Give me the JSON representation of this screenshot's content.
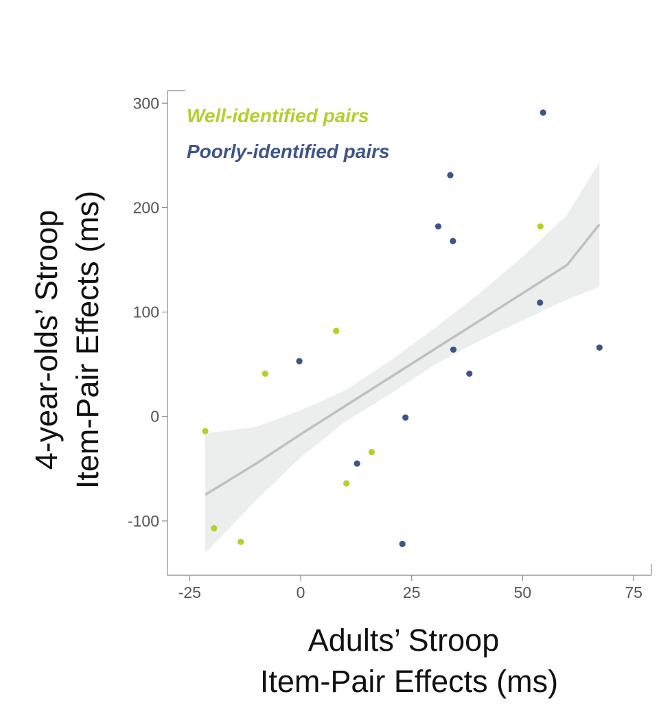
{
  "chart_data": {
    "type": "scatter",
    "xlabel_lines": [
      "Adults’ Stroop",
      "Item-Pair Effects (ms)"
    ],
    "ylabel_lines": [
      "4-year-olds’ Stroop",
      "Item-Pair Effects (ms)"
    ],
    "xlim": [
      -30,
      79
    ],
    "ylim": [
      -152,
      312
    ],
    "xticks": [
      -25,
      0,
      25,
      50,
      75
    ],
    "yticks": [
      -100,
      0,
      100,
      200,
      300
    ],
    "xtick_labels": [
      "-25",
      "0",
      "25",
      "50",
      "75"
    ],
    "ytick_labels": [
      "-100",
      "0",
      "100",
      "200",
      "300"
    ],
    "grid": false,
    "legend_position": "top-left",
    "series": [
      {
        "name": "Well-identified pairs",
        "color": "#b5cf2b",
        "x": [
          -21.5,
          -19.5,
          -13.5,
          -8,
          8,
          10.3,
          16,
          54
        ],
        "y": [
          -14,
          -107,
          -120,
          41,
          82,
          -64,
          -34,
          182
        ]
      },
      {
        "name": "Poorly-identified pairs",
        "color": "#3e5489",
        "x": [
          -0.3,
          12.7,
          22.9,
          23.6,
          31,
          33.7,
          34.3,
          34.4,
          38,
          53.9,
          54.6,
          67.3
        ],
        "y": [
          53,
          -45,
          -122,
          -1,
          182,
          231,
          168,
          64,
          41,
          109,
          291,
          66
        ]
      }
    ],
    "fit": {
      "color": "#bfbfbf",
      "band_color": "#eceeee",
      "x": [
        -21.5,
        -10,
        0,
        10,
        20,
        30,
        40,
        50,
        60,
        67.3
      ],
      "y": [
        -75,
        -45,
        -17,
        10,
        37,
        64,
        91,
        118,
        145,
        184
      ],
      "lower": [
        -131,
        -80,
        -39,
        -5,
        21,
        49,
        72,
        92,
        112,
        124
      ],
      "upper": [
        -16,
        -10,
        6,
        25,
        53,
        84,
        117,
        153,
        193,
        244
      ]
    }
  }
}
